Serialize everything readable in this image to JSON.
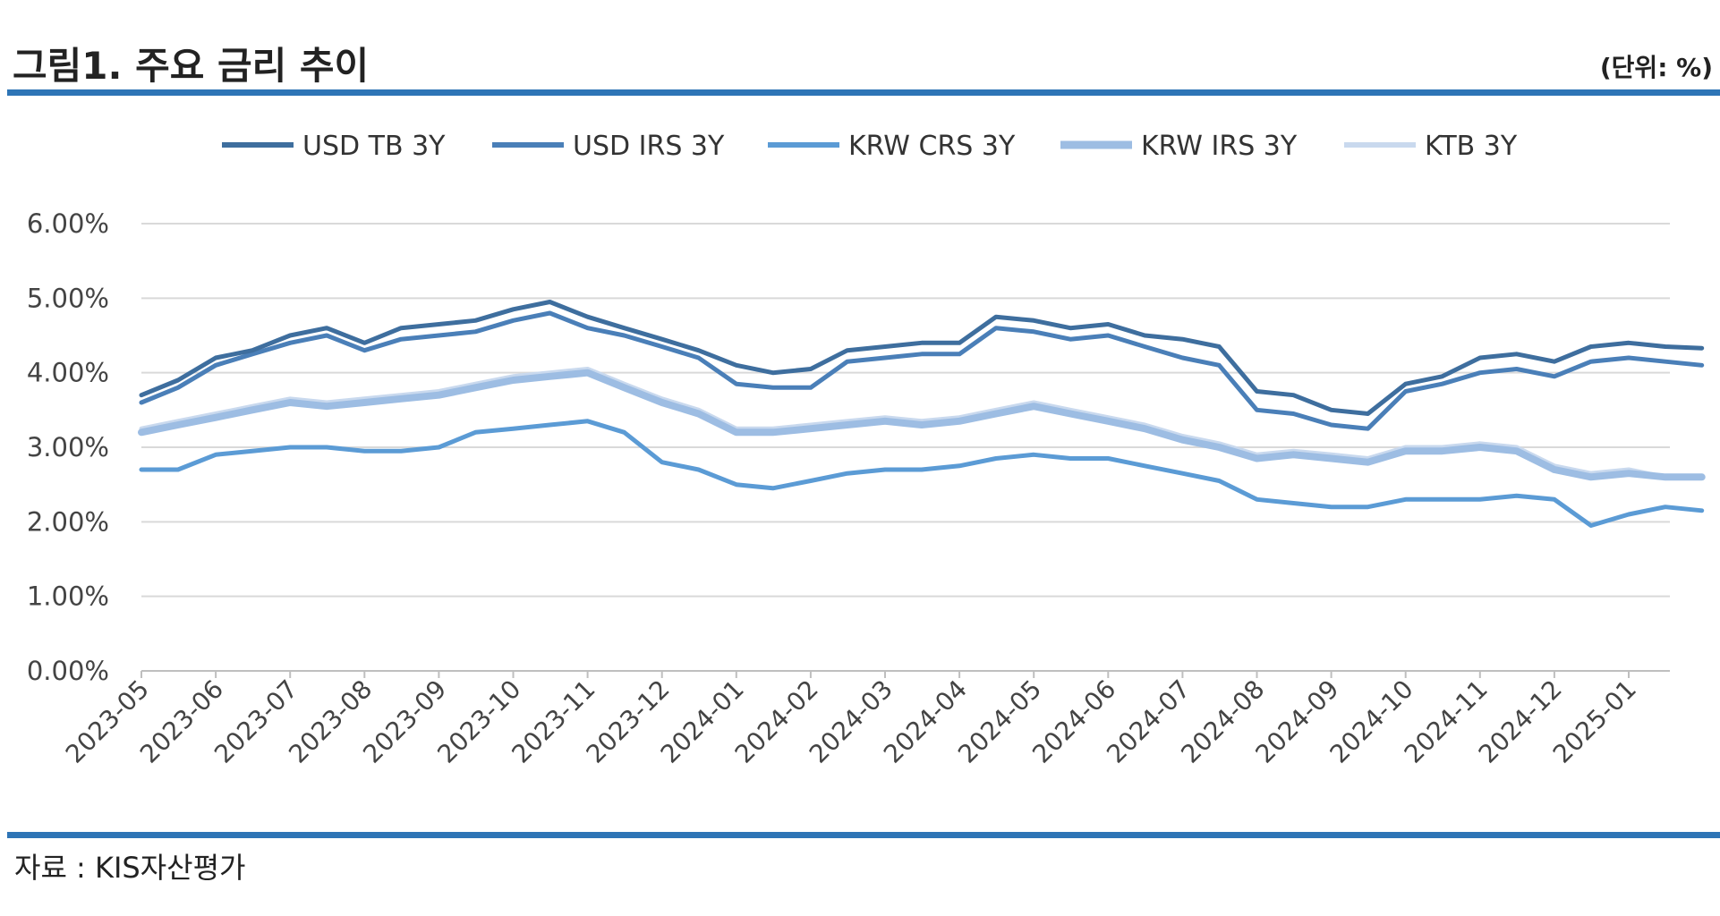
{
  "header": {
    "title": "그림1. 주요 금리 추이",
    "unit": "(단위: %)"
  },
  "footer": {
    "source": "자료 : KIS자산평가"
  },
  "chart_data": {
    "type": "line",
    "y_ticks": [
      "0.00%",
      "1.00%",
      "2.00%",
      "3.00%",
      "4.00%",
      "5.00%",
      "6.00%"
    ],
    "ylim": [
      0,
      6
    ],
    "grid": true,
    "legend_position": "top",
    "x_tick_labels": [
      "2023-05",
      "2023-06",
      "2023-07",
      "2023-08",
      "2023-09",
      "2023-10",
      "2023-11",
      "2023-12",
      "2024-01",
      "2024-02",
      "2024-03",
      "2024-04",
      "2024-05",
      "2024-06",
      "2024-07",
      "2024-08",
      "2024-09",
      "2024-10",
      "2024-11",
      "2024-12",
      "2025-01"
    ],
    "x": [
      "2023-05",
      "2023-05-16",
      "2023-06",
      "2023-06-16",
      "2023-07",
      "2023-07-16",
      "2023-08",
      "2023-08-16",
      "2023-09",
      "2023-09-16",
      "2023-10",
      "2023-10-16",
      "2023-11",
      "2023-11-16",
      "2023-12",
      "2023-12-16",
      "2024-01",
      "2024-01-16",
      "2024-02",
      "2024-02-16",
      "2024-03",
      "2024-03-16",
      "2024-04",
      "2024-04-16",
      "2024-05",
      "2024-05-16",
      "2024-06",
      "2024-06-16",
      "2024-07",
      "2024-07-16",
      "2024-08",
      "2024-08-16",
      "2024-09",
      "2024-09-16",
      "2024-10",
      "2024-10-16",
      "2024-11",
      "2024-11-16",
      "2024-12",
      "2024-12-16",
      "2025-01",
      "2025-01-16",
      "2025-01-31"
    ],
    "series": [
      {
        "name": "USD TB 3Y",
        "color": "#3E6E9E",
        "width": 5,
        "values": [
          3.7,
          3.9,
          4.2,
          4.3,
          4.5,
          4.6,
          4.4,
          4.6,
          4.65,
          4.7,
          4.85,
          4.95,
          4.75,
          4.6,
          4.45,
          4.3,
          4.1,
          4.0,
          4.05,
          4.3,
          4.35,
          4.4,
          4.4,
          4.75,
          4.7,
          4.6,
          4.65,
          4.5,
          4.45,
          4.35,
          3.75,
          3.7,
          3.5,
          3.45,
          3.85,
          3.95,
          4.2,
          4.25,
          4.15,
          4.35,
          4.4,
          4.35,
          4.33
        ]
      },
      {
        "name": "USD IRS 3Y",
        "color": "#4A7FB8",
        "width": 5,
        "values": [
          3.6,
          3.8,
          4.1,
          4.25,
          4.4,
          4.5,
          4.3,
          4.45,
          4.5,
          4.55,
          4.7,
          4.8,
          4.6,
          4.5,
          4.35,
          4.2,
          3.85,
          3.8,
          3.8,
          4.15,
          4.2,
          4.25,
          4.25,
          4.6,
          4.55,
          4.45,
          4.5,
          4.35,
          4.2,
          4.1,
          3.5,
          3.45,
          3.3,
          3.25,
          3.75,
          3.85,
          4.0,
          4.05,
          3.95,
          4.15,
          4.2,
          4.15,
          4.1
        ]
      },
      {
        "name": "KRW CRS 3Y",
        "color": "#5B9BD5",
        "width": 5,
        "values": [
          2.7,
          2.7,
          2.9,
          2.95,
          3.0,
          3.0,
          2.95,
          2.95,
          3.0,
          3.2,
          3.25,
          3.3,
          3.35,
          3.2,
          2.8,
          2.7,
          2.5,
          2.45,
          2.55,
          2.65,
          2.7,
          2.7,
          2.75,
          2.85,
          2.9,
          2.85,
          2.85,
          2.75,
          2.65,
          2.55,
          2.3,
          2.25,
          2.2,
          2.2,
          2.3,
          2.3,
          2.3,
          2.35,
          2.3,
          1.95,
          2.1,
          2.2,
          2.15
        ]
      },
      {
        "name": "KRW IRS 3Y",
        "color": "#9DBDE3",
        "width": 8,
        "values": [
          3.2,
          3.3,
          3.4,
          3.5,
          3.6,
          3.55,
          3.6,
          3.65,
          3.7,
          3.8,
          3.9,
          3.95,
          4.0,
          3.8,
          3.6,
          3.45,
          3.2,
          3.2,
          3.25,
          3.3,
          3.35,
          3.3,
          3.35,
          3.45,
          3.55,
          3.45,
          3.35,
          3.25,
          3.1,
          3.0,
          2.85,
          2.9,
          2.85,
          2.8,
          2.95,
          2.95,
          3.0,
          2.95,
          2.7,
          2.6,
          2.65,
          2.6,
          2.6
        ]
      },
      {
        "name": "KTB 3Y",
        "color": "#C9D9EE",
        "width": 5,
        "values": [
          3.25,
          3.35,
          3.45,
          3.55,
          3.65,
          3.6,
          3.65,
          3.7,
          3.75,
          3.85,
          3.95,
          4.0,
          4.05,
          3.85,
          3.65,
          3.5,
          3.25,
          3.25,
          3.3,
          3.35,
          3.4,
          3.35,
          3.4,
          3.5,
          3.6,
          3.5,
          3.4,
          3.3,
          3.15,
          3.05,
          2.9,
          2.95,
          2.9,
          2.85,
          3.0,
          3.0,
          3.05,
          3.0,
          2.75,
          2.65,
          2.7,
          2.6,
          2.6
        ]
      }
    ]
  }
}
